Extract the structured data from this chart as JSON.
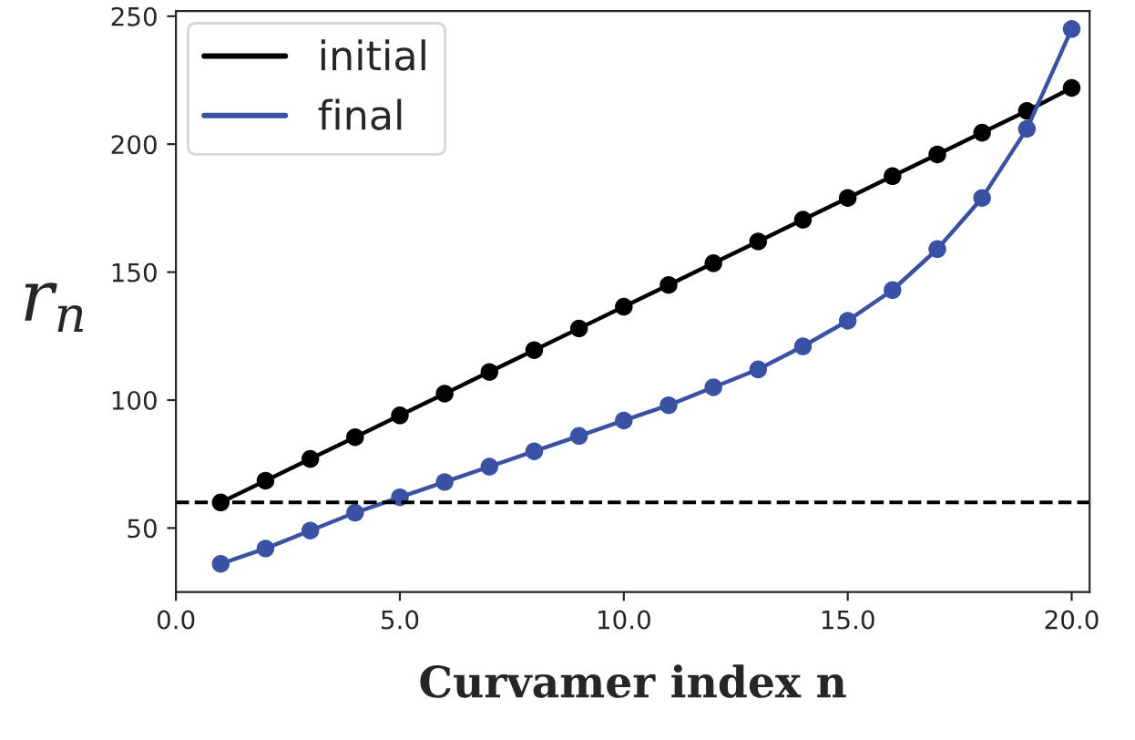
{
  "chart_data": {
    "type": "line",
    "xlabel": "Curvamer index n",
    "ylabel": "r$_{n}$",
    "x": [
      1,
      2,
      3,
      4,
      5,
      6,
      7,
      8,
      9,
      10,
      11,
      12,
      13,
      14,
      15,
      16,
      17,
      18,
      19,
      20
    ],
    "series": [
      {
        "name": "initial",
        "color": "#000000",
        "values": [
          60,
          68.5,
          77,
          85.5,
          94,
          102.5,
          111,
          119.5,
          128,
          136.5,
          145,
          153.5,
          162,
          170.5,
          179,
          187.5,
          196,
          204.5,
          213,
          222
        ]
      },
      {
        "name": "final",
        "color": "#3a52a4",
        "values": [
          36,
          42,
          49,
          56,
          62,
          68,
          74,
          80,
          86,
          92,
          98,
          105,
          112,
          121,
          131,
          143,
          159,
          179,
          206,
          245
        ]
      }
    ],
    "xlim": [
      0,
      20.4
    ],
    "ylim": [
      25,
      252
    ],
    "xticks": [
      {
        "value": 0,
        "label": "0.0"
      },
      {
        "value": 5,
        "label": "5.0"
      },
      {
        "value": 10,
        "label": "10.0"
      },
      {
        "value": 15,
        "label": "15.0"
      },
      {
        "value": 20,
        "label": "20.0"
      }
    ],
    "yticks": [
      50,
      100,
      150,
      200,
      250
    ],
    "ref_lines": [
      {
        "axis": "y",
        "value": 60,
        "color": "#000000",
        "line_style": "dashed"
      }
    ],
    "marker": "circle",
    "line_style": "solid",
    "legend": "top left",
    "grid": false
  }
}
